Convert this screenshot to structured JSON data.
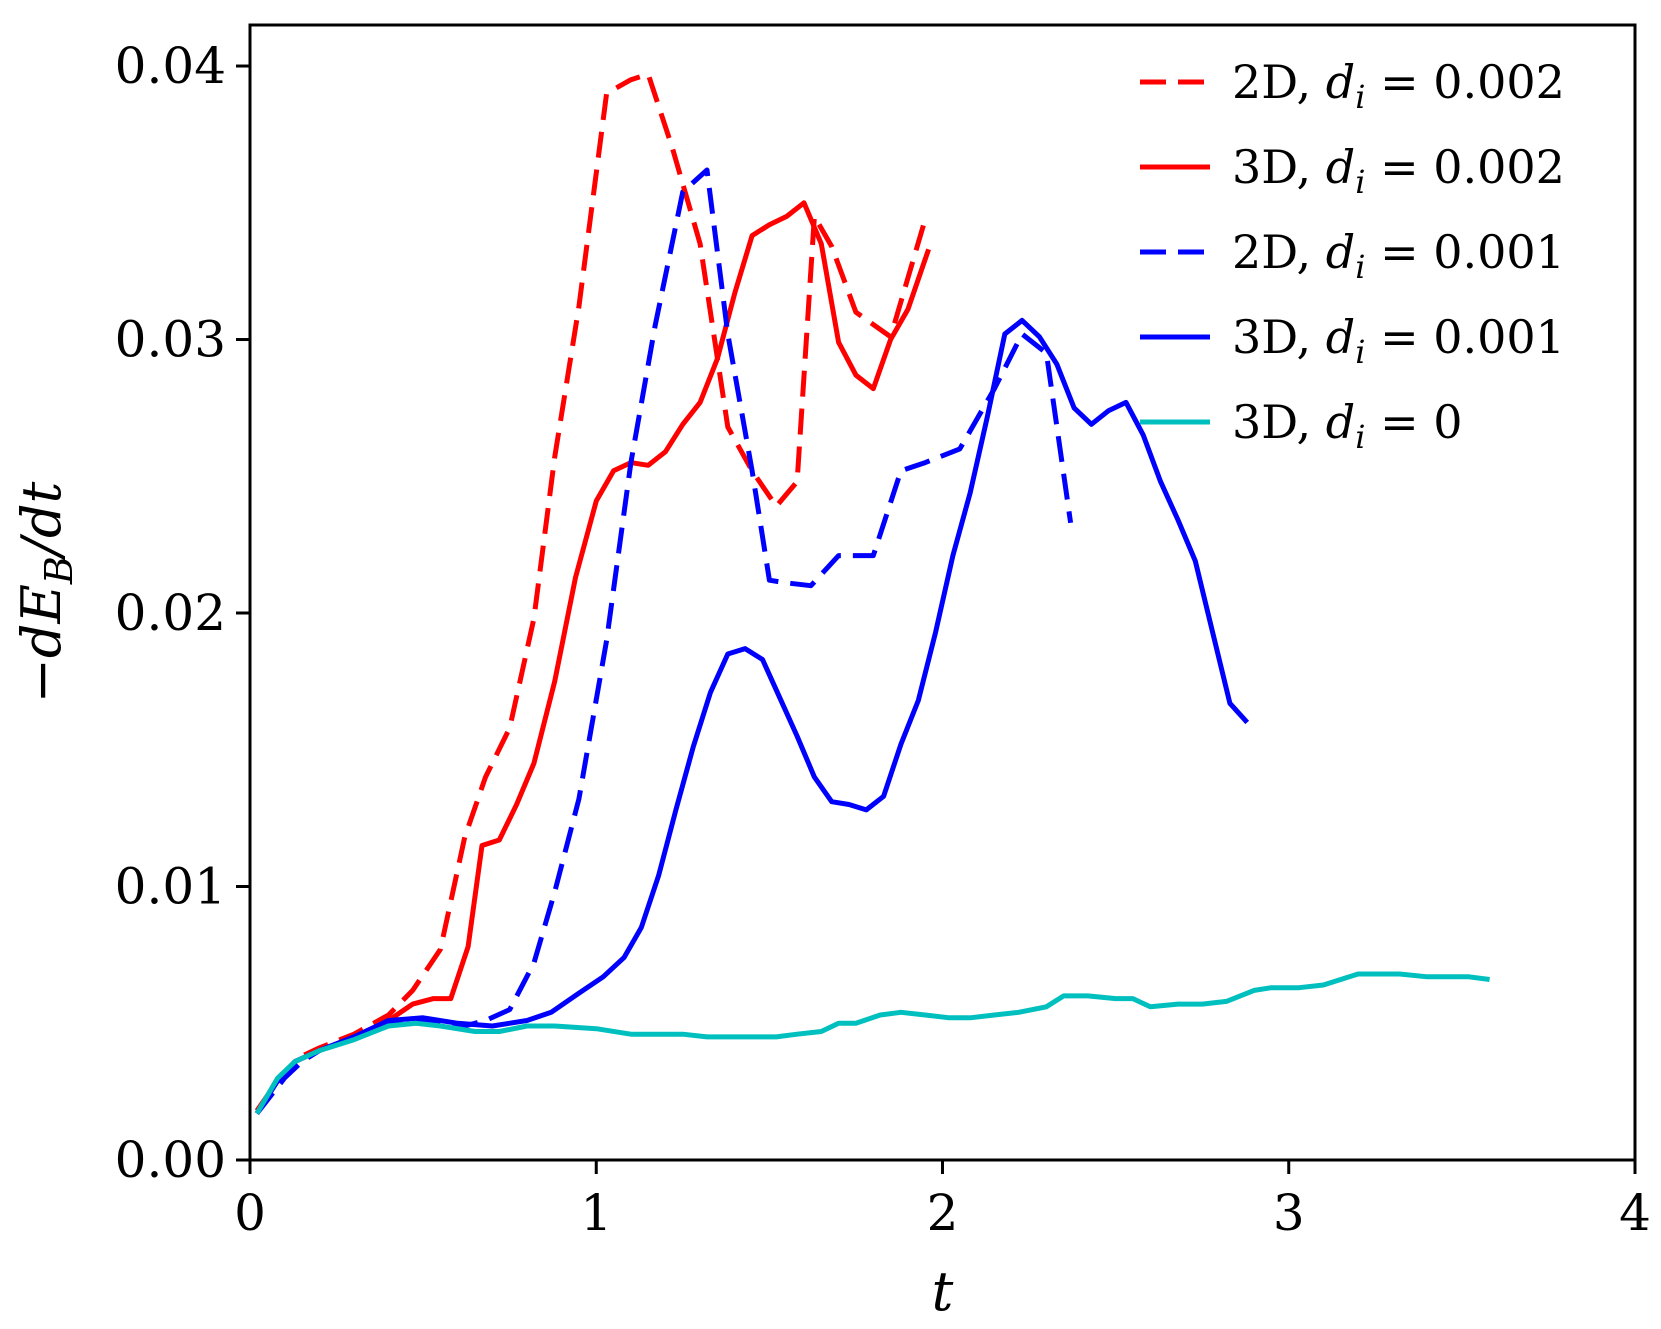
{
  "chart_data": {
    "type": "line",
    "xlabel": "t",
    "ylabel": "−dE_B/dt",
    "xlim": [
      0,
      4
    ],
    "ylim": [
      0,
      0.0415
    ],
    "x_ticks": [
      "0",
      "1",
      "2",
      "3",
      "4"
    ],
    "y_ticks": [
      "0.00",
      "0.01",
      "0.02",
      "0.03",
      "0.04"
    ],
    "legend_position": "top-right",
    "series": [
      {
        "name": "2D, d_i = 0.002",
        "color": "#ff0000",
        "style": "dashed",
        "x": [
          0.02,
          0.1,
          0.15,
          0.2,
          0.3,
          0.4,
          0.47,
          0.55,
          0.62,
          0.68,
          0.75,
          0.82,
          0.88,
          0.95,
          1.03,
          1.1,
          1.15,
          1.22,
          1.3,
          1.38,
          1.45,
          1.52,
          1.58,
          1.63,
          1.68,
          1.75,
          1.85,
          1.95
        ],
        "y": [
          0.0017,
          0.0032,
          0.0038,
          0.0041,
          0.0046,
          0.0053,
          0.0062,
          0.0077,
          0.0118,
          0.014,
          0.0158,
          0.0198,
          0.0257,
          0.0312,
          0.039,
          0.0395,
          0.0397,
          0.037,
          0.0335,
          0.0268,
          0.0252,
          0.0239,
          0.0248,
          0.0345,
          0.0334,
          0.031,
          0.0301,
          0.0344
        ]
      },
      {
        "name": "3D, d_i = 0.002",
        "color": "#ff0000",
        "style": "solid",
        "x": [
          0.02,
          0.08,
          0.13,
          0.2,
          0.3,
          0.4,
          0.47,
          0.53,
          0.58,
          0.63,
          0.67,
          0.72,
          0.77,
          0.82,
          0.88,
          0.94,
          1.0,
          1.05,
          1.1,
          1.15,
          1.2,
          1.25,
          1.3,
          1.35,
          1.4,
          1.45,
          1.5,
          1.55,
          1.6,
          1.65,
          1.7,
          1.75,
          1.8,
          1.85,
          1.9,
          1.96
        ],
        "y": [
          0.0018,
          0.0029,
          0.0036,
          0.004,
          0.0045,
          0.0051,
          0.0057,
          0.0059,
          0.0059,
          0.0078,
          0.0115,
          0.0117,
          0.013,
          0.0145,
          0.0175,
          0.0213,
          0.0241,
          0.0252,
          0.0255,
          0.0254,
          0.0259,
          0.0269,
          0.0277,
          0.0293,
          0.0317,
          0.0338,
          0.0342,
          0.0345,
          0.035,
          0.0335,
          0.0299,
          0.0287,
          0.0282,
          0.03,
          0.0311,
          0.0333
        ]
      },
      {
        "name": "2D, d_i = 0.001",
        "color": "#0000ff",
        "style": "dashed",
        "x": [
          0.02,
          0.1,
          0.15,
          0.2,
          0.3,
          0.4,
          0.47,
          0.55,
          0.62,
          0.68,
          0.75,
          0.82,
          0.88,
          0.95,
          1.03,
          1.1,
          1.17,
          1.25,
          1.32,
          1.38,
          1.45,
          1.5,
          1.55,
          1.62,
          1.7,
          1.8,
          1.88,
          1.95,
          2.05,
          2.15,
          2.23,
          2.3,
          2.37
        ],
        "y": [
          0.0017,
          0.003,
          0.0036,
          0.004,
          0.0045,
          0.005,
          0.0051,
          0.005,
          0.0049,
          0.0051,
          0.0055,
          0.0072,
          0.0098,
          0.0132,
          0.019,
          0.0255,
          0.0305,
          0.0354,
          0.0362,
          0.0302,
          0.0252,
          0.0212,
          0.0211,
          0.021,
          0.0221,
          0.0221,
          0.0252,
          0.0255,
          0.026,
          0.0282,
          0.0302,
          0.0295,
          0.0233
        ]
      },
      {
        "name": "3D, d_i = 0.001",
        "color": "#0000ff",
        "style": "solid",
        "x": [
          0.02,
          0.08,
          0.13,
          0.2,
          0.3,
          0.4,
          0.5,
          0.6,
          0.7,
          0.8,
          0.87,
          0.95,
          1.02,
          1.08,
          1.13,
          1.18,
          1.23,
          1.28,
          1.33,
          1.38,
          1.43,
          1.48,
          1.53,
          1.58,
          1.63,
          1.68,
          1.73,
          1.78,
          1.83,
          1.88,
          1.93,
          1.98,
          2.03,
          2.08,
          2.13,
          2.18,
          2.23,
          2.28,
          2.33,
          2.38,
          2.43,
          2.48,
          2.53,
          2.58,
          2.63,
          2.68,
          2.73,
          2.78,
          2.83,
          2.88
        ],
        "y": [
          0.0017,
          0.0029,
          0.0036,
          0.004,
          0.0045,
          0.0051,
          0.0052,
          0.005,
          0.0049,
          0.0051,
          0.0054,
          0.0061,
          0.0067,
          0.0074,
          0.0085,
          0.0104,
          0.0128,
          0.0151,
          0.0171,
          0.0185,
          0.0187,
          0.0183,
          0.0169,
          0.0155,
          0.014,
          0.0131,
          0.013,
          0.0128,
          0.0133,
          0.0152,
          0.0168,
          0.0193,
          0.0221,
          0.0244,
          0.0272,
          0.0302,
          0.0307,
          0.0301,
          0.0291,
          0.0275,
          0.0269,
          0.0274,
          0.0277,
          0.0265,
          0.0248,
          0.0234,
          0.0219,
          0.0193,
          0.0167,
          0.016
        ]
      },
      {
        "name": "3D, d_i = 0",
        "color": "#00bfbf",
        "style": "solid",
        "x": [
          0.02,
          0.08,
          0.13,
          0.2,
          0.3,
          0.4,
          0.48,
          0.55,
          0.65,
          0.72,
          0.8,
          0.88,
          1.0,
          1.1,
          1.18,
          1.25,
          1.32,
          1.38,
          1.45,
          1.52,
          1.58,
          1.65,
          1.7,
          1.75,
          1.82,
          1.88,
          1.95,
          2.02,
          2.08,
          2.15,
          2.22,
          2.3,
          2.35,
          2.42,
          2.5,
          2.55,
          2.6,
          2.68,
          2.75,
          2.82,
          2.9,
          2.95,
          3.03,
          3.1,
          3.15,
          3.2,
          3.25,
          3.32,
          3.4,
          3.47,
          3.52,
          3.58
        ],
        "y": [
          0.0017,
          0.003,
          0.0036,
          0.004,
          0.0044,
          0.0049,
          0.005,
          0.0049,
          0.0047,
          0.0047,
          0.0049,
          0.0049,
          0.0048,
          0.0046,
          0.0046,
          0.0046,
          0.0045,
          0.0045,
          0.0045,
          0.0045,
          0.0046,
          0.0047,
          0.005,
          0.005,
          0.0053,
          0.0054,
          0.0053,
          0.0052,
          0.0052,
          0.0053,
          0.0054,
          0.0056,
          0.006,
          0.006,
          0.0059,
          0.0059,
          0.0056,
          0.0057,
          0.0057,
          0.0058,
          0.0062,
          0.0063,
          0.0063,
          0.0064,
          0.0066,
          0.0068,
          0.0068,
          0.0068,
          0.0067,
          0.0067,
          0.0067,
          0.0066
        ]
      }
    ]
  }
}
